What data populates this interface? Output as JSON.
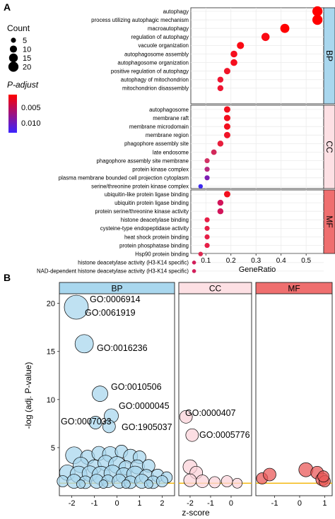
{
  "chart_data": [
    {
      "type": "scatter",
      "panel_label": "A",
      "xlabel": "GeneRatio",
      "ylabel": "",
      "xlim": [
        0.04,
        0.57
      ],
      "xticks": [
        "0.1",
        "0.2",
        "0.3",
        "0.4",
        "0.5"
      ],
      "xtick_values": [
        0.1,
        0.2,
        0.3,
        0.4,
        0.5
      ],
      "legend_count": {
        "title": "Count",
        "values": [
          "5",
          "10",
          "15",
          "20"
        ]
      },
      "legend_padjust": {
        "title": "P-adjust",
        "ticks": [
          "0.005",
          "0.010"
        ],
        "colors": [
          "#ff0000",
          "#3b24ff"
        ]
      },
      "facets": [
        {
          "name": "BP",
          "color": "#a9d7ee",
          "terms": [
            {
              "label": "autophagy",
              "x": 0.545,
              "count": 20,
              "color": "#ff0000"
            },
            {
              "label": "process utilizing autophagic mechanism",
              "x": 0.545,
              "count": 20,
              "color": "#ff0000"
            },
            {
              "label": "macroautophagy",
              "x": 0.415,
              "count": 16,
              "color": "#ff0000"
            },
            {
              "label": "regulation of autophagy",
              "x": 0.338,
              "count": 13,
              "color": "#fa0a14"
            },
            {
              "label": "vacuole organization",
              "x": 0.238,
              "count": 10,
              "color": "#fa0a14"
            },
            {
              "label": "autophagosome assembly",
              "x": 0.212,
              "count": 9,
              "color": "#f50f1e"
            },
            {
              "label": "autophagosome organization",
              "x": 0.212,
              "count": 9,
              "color": "#f50f1e"
            },
            {
              "label": "positive regulation of autophagy",
              "x": 0.185,
              "count": 8,
              "color": "#f01428"
            },
            {
              "label": "autophagy of mitochondrion",
              "x": 0.158,
              "count": 7,
              "color": "#ee1632"
            },
            {
              "label": "mitochondrion disassembly",
              "x": 0.158,
              "count": 7,
              "color": "#ee1632"
            }
          ]
        },
        {
          "name": "CC",
          "color": "#fde0e4",
          "terms": [
            {
              "label": "autophagosome",
              "x": 0.185,
              "count": 8,
              "color": "#f20f1e"
            },
            {
              "label": "membrane raft",
              "x": 0.185,
              "count": 8,
              "color": "#f20f1e"
            },
            {
              "label": "membrane microdomain",
              "x": 0.185,
              "count": 8,
              "color": "#f20f1e"
            },
            {
              "label": "membrane region",
              "x": 0.185,
              "count": 8,
              "color": "#f01428"
            },
            {
              "label": "phagophore assembly site",
              "x": 0.158,
              "count": 7,
              "color": "#e81e3c"
            },
            {
              "label": "late endosome",
              "x": 0.132,
              "count": 6,
              "color": "#d2285a"
            },
            {
              "label": "phagophore assembly site membrane",
              "x": 0.105,
              "count": 5,
              "color": "#d23264"
            },
            {
              "label": "protein kinase complex",
              "x": 0.105,
              "count": 5,
              "color": "#b9287d"
            },
            {
              "label": "plasma membrane bounded cell projection cytoplasm",
              "x": 0.105,
              "count": 5,
              "color": "#7d1eb4"
            },
            {
              "label": "serine/threonine protein kinase complex",
              "x": 0.079,
              "count": 4,
              "color": "#3c28f0"
            }
          ]
        },
        {
          "name": "MF",
          "color": "#ef6f6f",
          "terms": [
            {
              "label": "ubiquitin-like protein ligase binding",
              "x": 0.185,
              "count": 8,
              "color": "#f20f1e"
            },
            {
              "label": "ubiquitin protein ligase binding",
              "x": 0.158,
              "count": 7,
              "color": "#d2145a"
            },
            {
              "label": "protein serine/threonine kinase activity",
              "x": 0.158,
              "count": 7,
              "color": "#d2145a"
            },
            {
              "label": "histone deacetylase binding",
              "x": 0.105,
              "count": 5,
              "color": "#e61e46"
            },
            {
              "label": "cysteine-type endopeptidase activity",
              "x": 0.105,
              "count": 5,
              "color": "#e61e46"
            },
            {
              "label": "heat shock protein binding",
              "x": 0.105,
              "count": 5,
              "color": "#e61e46"
            },
            {
              "label": "protein phosphatase binding",
              "x": 0.105,
              "count": 5,
              "color": "#e61e46"
            },
            {
              "label": "Hsp90 protein binding",
              "x": 0.079,
              "count": 4,
              "color": "#dc2850"
            },
            {
              "label": "histone deacetylase activity (H3-K14 specific)",
              "x": 0.053,
              "count": 3,
              "color": "#d21e5a"
            },
            {
              "label": "NAD-dependent histone deacetylase activity (H3-K14 specific)",
              "x": 0.053,
              "count": 3,
              "color": "#d21e5a"
            }
          ]
        }
      ]
    },
    {
      "type": "scatter",
      "panel_label": "B",
      "xlabel": "z-score",
      "ylabel": "-log (adj. P-value)",
      "ylim": [
        0,
        21
      ],
      "yticks": [
        "5",
        "10",
        "15",
        "20"
      ],
      "ytick_values": [
        5,
        10,
        15,
        20
      ],
      "threshold": 1.3,
      "threshold_color": "#f4b400",
      "facets": [
        {
          "name": "BP",
          "color": "#a9d7ee",
          "fill": "#a9d7ee",
          "xlim": [
            -2.55,
            2.55
          ],
          "xticks": [
            "-2",
            "-1",
            "0",
            "1",
            "2"
          ],
          "xtick_values": [
            -2,
            -1,
            0,
            1,
            2
          ],
          "labels": [
            {
              "text": "GO:0006914",
              "x": -1.8,
              "y": 19.6
            },
            {
              "text": "GO:0061919",
              "x": -1.8,
              "y": 19.6
            },
            {
              "text": "GO:0016236",
              "x": -1.45,
              "y": 15.8
            },
            {
              "text": "GO:0010506",
              "x": -0.75,
              "y": 10.6
            },
            {
              "text": "GO:0000045",
              "x": -0.25,
              "y": 8.3
            },
            {
              "text": "GO:0007033",
              "x": -0.95,
              "y": 7.6
            },
            {
              "text": "GO:1905037",
              "x": -0.25,
              "y": 8.3
            }
          ],
          "points": [
            {
              "x": -1.8,
              "y": 19.6,
              "r": 17
            },
            {
              "x": -1.45,
              "y": 15.8,
              "r": 13
            },
            {
              "x": -0.75,
              "y": 10.6,
              "r": 11
            },
            {
              "x": -0.25,
              "y": 8.3,
              "r": 10
            },
            {
              "x": -0.95,
              "y": 7.6,
              "r": 9
            },
            {
              "x": -0.35,
              "y": 7.2,
              "r": 9
            },
            {
              "x": -1.9,
              "y": 4.2,
              "r": 12
            },
            {
              "x": -1.3,
              "y": 4.0,
              "r": 10
            },
            {
              "x": -0.8,
              "y": 4.4,
              "r": 10
            },
            {
              "x": -0.3,
              "y": 4.3,
              "r": 11
            },
            {
              "x": 0.2,
              "y": 4.6,
              "r": 9
            },
            {
              "x": 0.6,
              "y": 4.1,
              "r": 10
            },
            {
              "x": 1.0,
              "y": 4.0,
              "r": 9
            },
            {
              "x": -1.6,
              "y": 3.2,
              "r": 11
            },
            {
              "x": -1.0,
              "y": 3.0,
              "r": 10
            },
            {
              "x": -0.5,
              "y": 3.4,
              "r": 11
            },
            {
              "x": 0.0,
              "y": 3.2,
              "r": 12
            },
            {
              "x": 0.4,
              "y": 2.9,
              "r": 10
            },
            {
              "x": 0.9,
              "y": 3.0,
              "r": 10
            },
            {
              "x": 1.4,
              "y": 3.1,
              "r": 9
            },
            {
              "x": -2.2,
              "y": 2.4,
              "r": 11
            },
            {
              "x": -1.7,
              "y": 2.2,
              "r": 12
            },
            {
              "x": -1.2,
              "y": 2.3,
              "r": 11
            },
            {
              "x": -0.7,
              "y": 2.1,
              "r": 13
            },
            {
              "x": -0.2,
              "y": 2.3,
              "r": 12
            },
            {
              "x": 0.3,
              "y": 2.1,
              "r": 11
            },
            {
              "x": 0.8,
              "y": 2.2,
              "r": 12
            },
            {
              "x": 1.3,
              "y": 2.0,
              "r": 10
            },
            {
              "x": 1.8,
              "y": 2.1,
              "r": 9
            },
            {
              "x": 2.2,
              "y": 1.9,
              "r": 8
            },
            {
              "x": -2.4,
              "y": 1.5,
              "r": 8
            },
            {
              "x": -1.9,
              "y": 1.5,
              "r": 10
            },
            {
              "x": -1.4,
              "y": 1.4,
              "r": 9
            },
            {
              "x": -0.9,
              "y": 1.5,
              "r": 10
            },
            {
              "x": -0.4,
              "y": 1.5,
              "r": 9
            },
            {
              "x": 0.1,
              "y": 1.5,
              "r": 10
            },
            {
              "x": 0.6,
              "y": 1.4,
              "r": 9
            },
            {
              "x": 1.1,
              "y": 1.5,
              "r": 10
            },
            {
              "x": 1.6,
              "y": 1.4,
              "r": 9
            },
            {
              "x": 2.0,
              "y": 1.5,
              "r": 8
            },
            {
              "x": -1.6,
              "y": 1.2,
              "r": 6
            },
            {
              "x": -0.6,
              "y": 1.2,
              "r": 6
            },
            {
              "x": 0.4,
              "y": 1.2,
              "r": 6
            },
            {
              "x": 1.4,
              "y": 1.2,
              "r": 6
            }
          ]
        },
        {
          "name": "CC",
          "color": "#fde0e4",
          "fill": "#fbd3da",
          "xlim": [
            -2.55,
            1.0
          ],
          "xticks": [
            "-2",
            "-1",
            "0"
          ],
          "xtick_values": [
            -2,
            -1,
            0
          ],
          "labels": [
            {
              "text": "GO:0000407",
              "x": -2.2,
              "y": 8.2
            },
            {
              "text": "GO:0005776",
              "x": -1.9,
              "y": 6.3
            }
          ],
          "points": [
            {
              "x": -2.2,
              "y": 8.2,
              "r": 9
            },
            {
              "x": -1.9,
              "y": 6.3,
              "r": 9
            },
            {
              "x": -2.0,
              "y": 3.0,
              "r": 10
            },
            {
              "x": -1.7,
              "y": 2.4,
              "r": 9
            },
            {
              "x": -2.0,
              "y": 1.6,
              "r": 9
            },
            {
              "x": -1.4,
              "y": 1.5,
              "r": 9
            },
            {
              "x": -0.8,
              "y": 1.4,
              "r": 8
            },
            {
              "x": -0.2,
              "y": 1.5,
              "r": 8
            },
            {
              "x": 0.3,
              "y": 1.3,
              "r": 7
            }
          ]
        },
        {
          "name": "MF",
          "color": "#ef6f6f",
          "fill": "#ea5b5b",
          "xlim": [
            -1.75,
            1.3
          ],
          "xticks": [
            "-1",
            "0",
            "1"
          ],
          "xtick_values": [
            -1,
            0,
            1
          ],
          "labels": [],
          "points": [
            {
              "x": -1.5,
              "y": 1.8,
              "r": 8
            },
            {
              "x": -1.2,
              "y": 2.2,
              "r": 9
            },
            {
              "x": 0.25,
              "y": 2.7,
              "r": 10
            },
            {
              "x": 0.7,
              "y": 2.4,
              "r": 9
            },
            {
              "x": 0.9,
              "y": 1.7,
              "r": 9
            },
            {
              "x": 1.0,
              "y": 1.5,
              "r": 8
            },
            {
              "x": 0.95,
              "y": 2.0,
              "r": 8
            }
          ]
        }
      ]
    }
  ]
}
